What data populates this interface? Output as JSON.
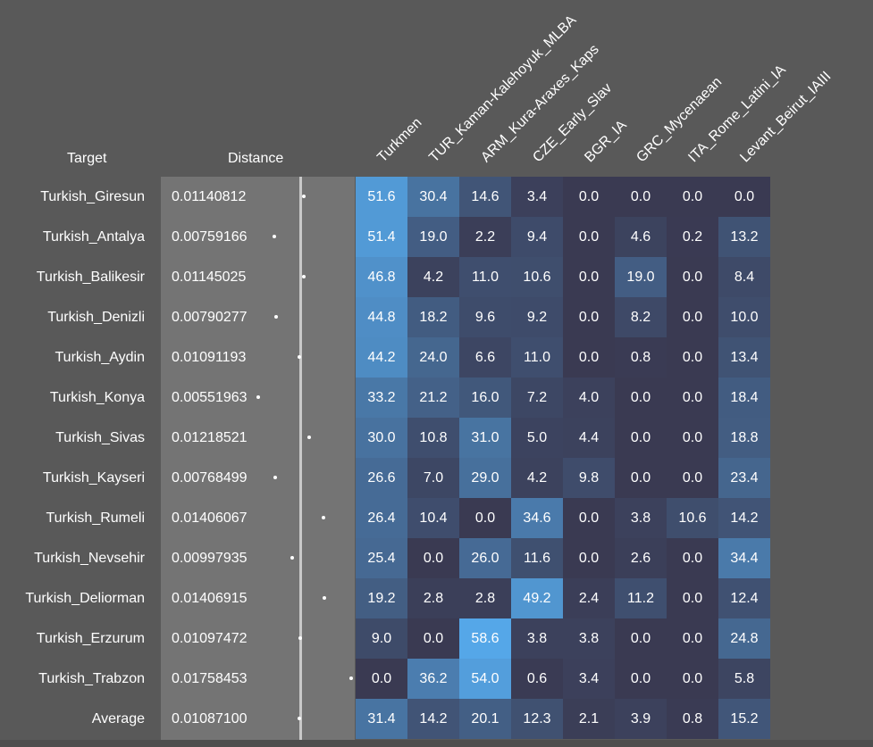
{
  "chart_data": {
    "type": "heatmap",
    "headers": {
      "target": "Target",
      "distance": "Distance"
    },
    "columns": [
      "Turkmen",
      "TUR_Kaman-Kalehoyuk_MLBA",
      "ARM_Kura-Araxes_Kaps",
      "CZE_Early_Slav",
      "BGR_IA",
      "GRC_Mycenaean",
      "ITA_Rome_Latini_IA",
      "Levant_Beirut_IAIII"
    ],
    "rows": [
      {
        "target": "Turkish_Giresun",
        "distance": "0.01140812",
        "values": [
          "51.6",
          "30.4",
          "14.6",
          "3.4",
          "0.0",
          "0.0",
          "0.0",
          "0.0"
        ]
      },
      {
        "target": "Turkish_Antalya",
        "distance": "0.00759166",
        "values": [
          "51.4",
          "19.0",
          "2.2",
          "9.4",
          "0.0",
          "4.6",
          "0.2",
          "13.2"
        ]
      },
      {
        "target": "Turkish_Balikesir",
        "distance": "0.01145025",
        "values": [
          "46.8",
          "4.2",
          "11.0",
          "10.6",
          "0.0",
          "19.0",
          "0.0",
          "8.4"
        ]
      },
      {
        "target": "Turkish_Denizli",
        "distance": "0.00790277",
        "values": [
          "44.8",
          "18.2",
          "9.6",
          "9.2",
          "0.0",
          "8.2",
          "0.0",
          "10.0"
        ]
      },
      {
        "target": "Turkish_Aydin",
        "distance": "0.01091193",
        "values": [
          "44.2",
          "24.0",
          "6.6",
          "11.0",
          "0.0",
          "0.8",
          "0.0",
          "13.4"
        ]
      },
      {
        "target": "Turkish_Konya",
        "distance": "0.00551963",
        "values": [
          "33.2",
          "21.2",
          "16.0",
          "7.2",
          "4.0",
          "0.0",
          "0.0",
          "18.4"
        ]
      },
      {
        "target": "Turkish_Sivas",
        "distance": "0.01218521",
        "values": [
          "30.0",
          "10.8",
          "31.0",
          "5.0",
          "4.4",
          "0.0",
          "0.0",
          "18.8"
        ]
      },
      {
        "target": "Turkish_Kayseri",
        "distance": "0.00768499",
        "values": [
          "26.6",
          "7.0",
          "29.0",
          "4.2",
          "9.8",
          "0.0",
          "0.0",
          "23.4"
        ]
      },
      {
        "target": "Turkish_Rumeli",
        "distance": "0.01406067",
        "values": [
          "26.4",
          "10.4",
          "0.0",
          "34.6",
          "0.0",
          "3.8",
          "10.6",
          "14.2"
        ]
      },
      {
        "target": "Turkish_Nevsehir",
        "distance": "0.00997935",
        "values": [
          "25.4",
          "0.0",
          "26.0",
          "11.6",
          "0.0",
          "2.6",
          "0.0",
          "34.4"
        ]
      },
      {
        "target": "Turkish_Deliorman",
        "distance": "0.01406915",
        "values": [
          "19.2",
          "2.8",
          "2.8",
          "49.2",
          "2.4",
          "11.2",
          "0.0",
          "12.4"
        ]
      },
      {
        "target": "Turkish_Erzurum",
        "distance": "0.01097472",
        "values": [
          "9.0",
          "0.0",
          "58.6",
          "3.8",
          "3.8",
          "0.0",
          "0.0",
          "24.8"
        ]
      },
      {
        "target": "Turkish_Trabzon",
        "distance": "0.01758453",
        "values": [
          "0.0",
          "36.2",
          "54.0",
          "0.6",
          "3.4",
          "0.0",
          "0.0",
          "5.8"
        ]
      },
      {
        "target": "Average",
        "distance": "0.01087100",
        "values": [
          "31.4",
          "14.2",
          "20.1",
          "12.3",
          "2.1",
          "3.9",
          "0.8",
          "15.2"
        ]
      }
    ],
    "color_scale": {
      "low": "#3a3a52",
      "high": "#55a7e8"
    }
  }
}
